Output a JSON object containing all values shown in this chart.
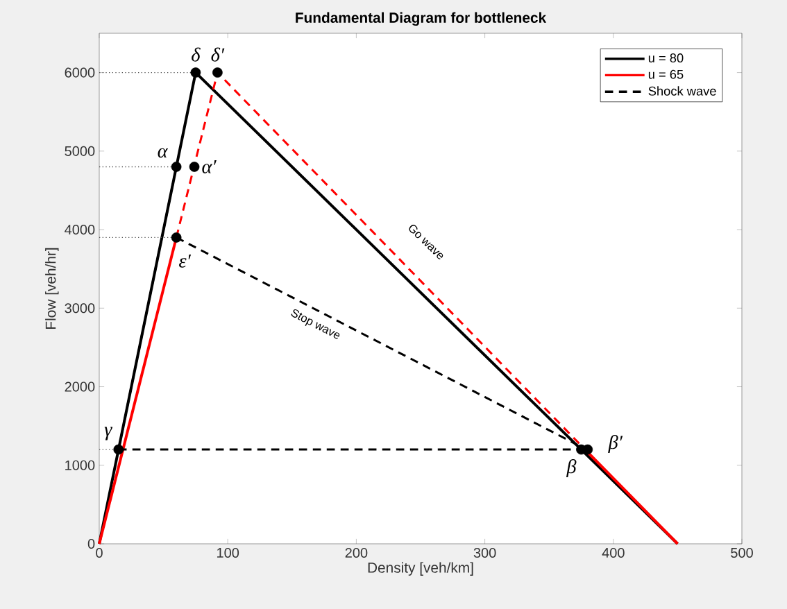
{
  "chart_data": {
    "type": "line",
    "title": "Fundamental Diagram for bottleneck",
    "xlabel": "Density [veh/km]",
    "ylabel": "Flow [veh/hr]",
    "xlim": [
      0,
      500
    ],
    "ylim": [
      0,
      6500
    ],
    "xticks": [
      0,
      100,
      200,
      300,
      400,
      500
    ],
    "yticks": [
      0,
      1000,
      2000,
      3000,
      4000,
      5000,
      6000
    ],
    "legend": "top right",
    "series": [
      {
        "name": "u = 80",
        "color": "#000000",
        "line_style": "solid",
        "x": [
          0,
          75,
          450
        ],
        "values": [
          0,
          6000,
          0
        ]
      },
      {
        "name": "u = 65",
        "color": "#ff0000",
        "line_style": "solid",
        "x": [
          0,
          60
        ],
        "values": [
          0,
          3900
        ]
      },
      {
        "name": "Shock wave",
        "color": "#000000",
        "line_style": "dashed",
        "x": [
          15,
          378
        ],
        "values": [
          1200,
          1200
        ]
      },
      {
        "color": "#ff0000",
        "line_style": "solid",
        "x": [
          378,
          450
        ],
        "values": [
          1200,
          0
        ]
      },
      {
        "color": "#ff0000",
        "line_style": "dashed",
        "x": [
          60,
          92,
          378
        ],
        "values": [
          3900,
          6000,
          1200
        ]
      },
      {
        "color": "#000000",
        "line_style": "dashed",
        "x": [
          15,
          60
        ],
        "values": [
          1200,
          4800
        ]
      },
      {
        "color": "#000000",
        "line_style": "dashed",
        "x": [
          60,
          372
        ],
        "values": [
          3900,
          1260
        ]
      },
      {
        "color": "#555555",
        "line_style": "dotted",
        "x": [
          0,
          75
        ],
        "values": [
          6000,
          6000
        ]
      },
      {
        "color": "#555555",
        "line_style": "dotted",
        "x": [
          0,
          60
        ],
        "values": [
          4800,
          4800
        ]
      },
      {
        "color": "#555555",
        "line_style": "dotted",
        "x": [
          0,
          60
        ],
        "values": [
          3900,
          3900
        ]
      },
      {
        "color": "#555555",
        "line_style": "dotted",
        "x": [
          0,
          15
        ],
        "values": [
          1200,
          1200
        ]
      },
      {
        "type": "scatter",
        "color": "#000000",
        "marker": "circle",
        "x": [
          75,
          92,
          60,
          74,
          60,
          15,
          375,
          380
        ],
        "values": [
          6000,
          6000,
          4800,
          4800,
          3900,
          1200,
          1200,
          1200
        ]
      }
    ],
    "annotations": [
      {
        "text": "Go wave",
        "x": 233,
        "y": 3634
      },
      {
        "text": "Stop wave",
        "x": 173,
        "y": 2944
      },
      {
        "text": "δ",
        "x": 75,
        "y": 6000
      },
      {
        "text": "δ′",
        "x": 92,
        "y": 6000
      },
      {
        "text": "α",
        "x": 60,
        "y": 4800
      },
      {
        "text": "α′",
        "x": 74,
        "y": 4800
      },
      {
        "text": "ε′",
        "x": 60,
        "y": 3900
      },
      {
        "text": "γ",
        "x": 15,
        "y": 1200
      },
      {
        "text": "β",
        "x": 375,
        "y": 1200
      },
      {
        "text": "β′",
        "x": 380,
        "y": 1200
      }
    ]
  }
}
